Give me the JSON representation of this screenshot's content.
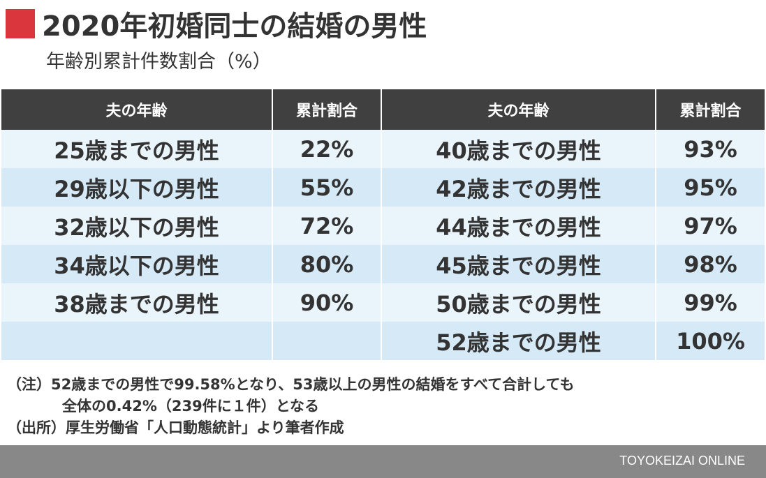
{
  "title": "2020年初婚同士の結婚の男性",
  "subtitle": "年齢別累計件数割合（%）",
  "table": {
    "headers": [
      "夫の年齢",
      "累計割合",
      "夫の年齢",
      "累計割合"
    ],
    "rows": [
      [
        "25歳までの男性",
        "22%",
        "40歳までの男性",
        "93%"
      ],
      [
        "29歳以下の男性",
        "55%",
        "42歳までの男性",
        "95%"
      ],
      [
        "32歳以下の男性",
        "72%",
        "44歳までの男性",
        "97%"
      ],
      [
        "34歳以下の男性",
        "80%",
        "45歳までの男性",
        "98%"
      ],
      [
        "38歳までの男性",
        "90%",
        "50歳までの男性",
        "99%"
      ],
      [
        "",
        "",
        "52歳までの男性",
        "100%"
      ]
    ]
  },
  "notes": {
    "line1": "（注）52歳までの男性で99.58%となり、53歳以上の男性の結婚をすべて合計しても",
    "line2": "全体の0.42%（239件に１件）となる",
    "line3": "（出所）厚生労働省「人口動態統計」より筆者作成"
  },
  "footer": {
    "brand": "TOYOKEIZAI ONLINE"
  },
  "colors": {
    "accent": "#d9363e",
    "header_bg": "#404040",
    "row_light": "#eaf4fb",
    "row_dark": "#d5e9f6",
    "footer_bg": "#888888"
  }
}
